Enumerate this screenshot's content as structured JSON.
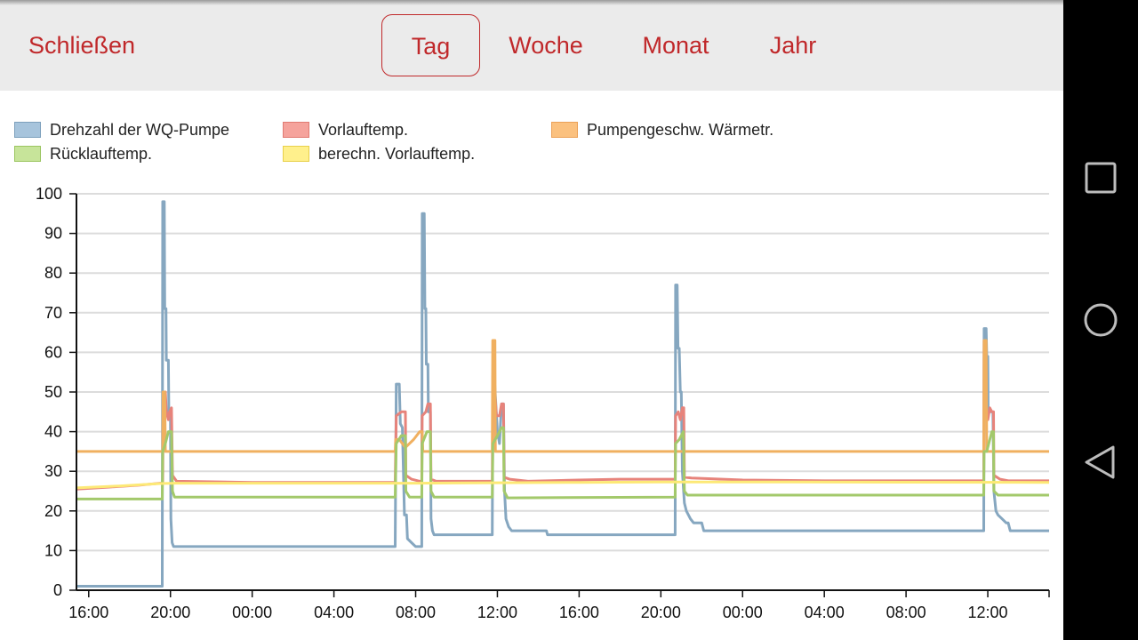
{
  "header": {
    "close_label": "Schließen",
    "tabs": [
      {
        "label": "Tag",
        "active": true
      },
      {
        "label": "Woche",
        "active": false
      },
      {
        "label": "Monat",
        "active": false
      },
      {
        "label": "Jahr",
        "active": false
      }
    ]
  },
  "navbar": {
    "buttons": [
      "recent-apps-icon",
      "home-icon",
      "back-icon"
    ]
  },
  "colors": {
    "accent": "#c0282a",
    "drehzahl": "#86a7c0",
    "vorlauf": "#e7837b",
    "ruecklauf": "#a3c96b",
    "berechn": "#fde976",
    "pumpen": "#f0b060"
  },
  "chart_data": {
    "type": "line",
    "ylim": [
      0,
      100
    ],
    "yticks": [
      0,
      10,
      20,
      30,
      40,
      50,
      60,
      70,
      80,
      90,
      100
    ],
    "xlim": [
      15.4,
      63.0
    ],
    "xunit": "hours since first midnight shown (00:00 = 24)",
    "xticks": [
      {
        "x": 16,
        "label": "16:00"
      },
      {
        "x": 20,
        "label": "20:00"
      },
      {
        "x": 24,
        "label": "00:00"
      },
      {
        "x": 28,
        "label": "04:00"
      },
      {
        "x": 32,
        "label": "08:00"
      },
      {
        "x": 36,
        "label": "12:00"
      },
      {
        "x": 40,
        "label": "16:00"
      },
      {
        "x": 44,
        "label": "20:00"
      },
      {
        "x": 48,
        "label": "00:00"
      },
      {
        "x": 52,
        "label": "04:00"
      },
      {
        "x": 56,
        "label": "08:00"
      },
      {
        "x": 60,
        "label": "12:00"
      }
    ],
    "grid": true,
    "legend_position": "top",
    "series": [
      {
        "name": "Drehzahl der WQ-Pumpe",
        "color": "#86a7c0",
        "points": [
          [
            15.4,
            1
          ],
          [
            19.6,
            1
          ],
          [
            19.62,
            98
          ],
          [
            19.7,
            98
          ],
          [
            19.72,
            71
          ],
          [
            19.78,
            71
          ],
          [
            19.8,
            58
          ],
          [
            19.9,
            58
          ],
          [
            19.92,
            45
          ],
          [
            20.0,
            45
          ],
          [
            20.02,
            18
          ],
          [
            20.08,
            12
          ],
          [
            20.15,
            11
          ],
          [
            31.0,
            11
          ],
          [
            31.05,
            52
          ],
          [
            31.2,
            52
          ],
          [
            31.25,
            42
          ],
          [
            31.35,
            41
          ],
          [
            31.45,
            19
          ],
          [
            31.55,
            19
          ],
          [
            31.6,
            13
          ],
          [
            31.8,
            12
          ],
          [
            32.0,
            11
          ],
          [
            32.3,
            11
          ],
          [
            32.32,
            95
          ],
          [
            32.42,
            95
          ],
          [
            32.45,
            71
          ],
          [
            32.5,
            71
          ],
          [
            32.52,
            57
          ],
          [
            32.6,
            57
          ],
          [
            32.62,
            45
          ],
          [
            32.72,
            45
          ],
          [
            32.75,
            18
          ],
          [
            32.82,
            15
          ],
          [
            32.9,
            14
          ],
          [
            35.75,
            14
          ],
          [
            35.78,
            54
          ],
          [
            35.85,
            54
          ],
          [
            35.9,
            49
          ],
          [
            36.0,
            40
          ],
          [
            36.1,
            37
          ],
          [
            36.2,
            47
          ],
          [
            36.3,
            47
          ],
          [
            36.35,
            25
          ],
          [
            36.42,
            18
          ],
          [
            36.55,
            16
          ],
          [
            36.7,
            15
          ],
          [
            38.4,
            15
          ],
          [
            38.45,
            14
          ],
          [
            44.7,
            14
          ],
          [
            44.72,
            77
          ],
          [
            44.8,
            77
          ],
          [
            44.84,
            61
          ],
          [
            44.9,
            61
          ],
          [
            44.95,
            50
          ],
          [
            45.0,
            50
          ],
          [
            45.05,
            30
          ],
          [
            45.15,
            22
          ],
          [
            45.25,
            20
          ],
          [
            45.45,
            18
          ],
          [
            45.6,
            17
          ],
          [
            46.0,
            17
          ],
          [
            46.1,
            15
          ],
          [
            59.8,
            15
          ],
          [
            59.82,
            66
          ],
          [
            59.92,
            66
          ],
          [
            59.95,
            59
          ],
          [
            60.0,
            59
          ],
          [
            60.02,
            45
          ],
          [
            60.25,
            45
          ],
          [
            60.3,
            25
          ],
          [
            60.4,
            20
          ],
          [
            60.5,
            19
          ],
          [
            60.7,
            18
          ],
          [
            60.9,
            17
          ],
          [
            61.0,
            17
          ],
          [
            61.1,
            15
          ],
          [
            63.0,
            15
          ]
        ]
      },
      {
        "name": "Vorlauftemp.",
        "color": "#e7837b",
        "points": [
          [
            15.4,
            25.5
          ],
          [
            17.0,
            26
          ],
          [
            18.5,
            26.5
          ],
          [
            19.5,
            27
          ],
          [
            19.62,
            27
          ],
          [
            19.65,
            50
          ],
          [
            19.75,
            50
          ],
          [
            19.8,
            45
          ],
          [
            19.9,
            43
          ],
          [
            19.95,
            45
          ],
          [
            20.05,
            46
          ],
          [
            20.1,
            29
          ],
          [
            20.3,
            27.5
          ],
          [
            24.0,
            27.2
          ],
          [
            31.0,
            27.2
          ],
          [
            31.05,
            44
          ],
          [
            31.3,
            45
          ],
          [
            31.5,
            45
          ],
          [
            31.52,
            29
          ],
          [
            31.8,
            28
          ],
          [
            32.2,
            27.5
          ],
          [
            32.3,
            27.5
          ],
          [
            32.32,
            44
          ],
          [
            32.5,
            45
          ],
          [
            32.6,
            47
          ],
          [
            32.72,
            47
          ],
          [
            32.75,
            28
          ],
          [
            33.0,
            27.5
          ],
          [
            35.75,
            27.5
          ],
          [
            35.78,
            54
          ],
          [
            35.85,
            52
          ],
          [
            35.95,
            44
          ],
          [
            36.1,
            44
          ],
          [
            36.2,
            47
          ],
          [
            36.3,
            47
          ],
          [
            36.33,
            28.5
          ],
          [
            36.6,
            28
          ],
          [
            37.5,
            27.5
          ],
          [
            40.0,
            27.8
          ],
          [
            42.0,
            28
          ],
          [
            44.7,
            28
          ],
          [
            44.72,
            44
          ],
          [
            44.85,
            45
          ],
          [
            44.95,
            43
          ],
          [
            45.05,
            46
          ],
          [
            45.12,
            46
          ],
          [
            45.15,
            28.5
          ],
          [
            45.5,
            28.3
          ],
          [
            48.0,
            27.8
          ],
          [
            52.0,
            27.6
          ],
          [
            59.8,
            27.6
          ],
          [
            59.82,
            63
          ],
          [
            59.9,
            63
          ],
          [
            59.93,
            45
          ],
          [
            60.0,
            43
          ],
          [
            60.1,
            46
          ],
          [
            60.2,
            45
          ],
          [
            60.28,
            45
          ],
          [
            60.3,
            29
          ],
          [
            60.6,
            28
          ],
          [
            61.0,
            27.6
          ],
          [
            63.0,
            27.6
          ]
        ]
      },
      {
        "name": "Pumpengeschw. Wärmetr.",
        "color": "#f0b060",
        "points": [
          [
            15.4,
            35
          ],
          [
            19.62,
            35
          ],
          [
            19.64,
            50
          ],
          [
            19.72,
            50
          ],
          [
            19.75,
            35
          ],
          [
            31.0,
            35
          ],
          [
            31.02,
            38
          ],
          [
            31.2,
            38
          ],
          [
            31.5,
            36
          ],
          [
            31.9,
            38
          ],
          [
            32.2,
            40
          ],
          [
            32.32,
            40
          ],
          [
            32.35,
            35
          ],
          [
            35.75,
            35
          ],
          [
            35.77,
            63
          ],
          [
            35.88,
            63
          ],
          [
            35.9,
            35
          ],
          [
            59.8,
            35
          ],
          [
            59.82,
            63
          ],
          [
            59.92,
            63
          ],
          [
            59.95,
            35
          ],
          [
            63.0,
            35
          ]
        ]
      },
      {
        "name": "Rücklauftemp.",
        "color": "#a3c96b",
        "points": [
          [
            15.4,
            23
          ],
          [
            19.6,
            23
          ],
          [
            19.62,
            35
          ],
          [
            19.75,
            37
          ],
          [
            19.9,
            40
          ],
          [
            20.05,
            40
          ],
          [
            20.1,
            25
          ],
          [
            20.2,
            23.5
          ],
          [
            31.0,
            23.5
          ],
          [
            31.05,
            37
          ],
          [
            31.3,
            39
          ],
          [
            31.5,
            39
          ],
          [
            31.52,
            25
          ],
          [
            31.7,
            23.5
          ],
          [
            32.3,
            23.5
          ],
          [
            32.32,
            37
          ],
          [
            32.55,
            40
          ],
          [
            32.72,
            40
          ],
          [
            32.75,
            25
          ],
          [
            32.9,
            23.5
          ],
          [
            35.75,
            23.5
          ],
          [
            35.78,
            37
          ],
          [
            36.0,
            39
          ],
          [
            36.2,
            41
          ],
          [
            36.3,
            41
          ],
          [
            36.33,
            25
          ],
          [
            36.5,
            23.3
          ],
          [
            44.7,
            23.5
          ],
          [
            44.72,
            37
          ],
          [
            44.9,
            38
          ],
          [
            45.1,
            40
          ],
          [
            45.15,
            25
          ],
          [
            45.3,
            24
          ],
          [
            59.8,
            24
          ],
          [
            59.82,
            35
          ],
          [
            59.95,
            35
          ],
          [
            60.1,
            38
          ],
          [
            60.2,
            40
          ],
          [
            60.28,
            40
          ],
          [
            60.3,
            25
          ],
          [
            60.5,
            24
          ],
          [
            63.0,
            24
          ]
        ]
      },
      {
        "name": "berechn. Vorlauftemp.",
        "color": "#fde976",
        "points": [
          [
            15.4,
            25.8
          ],
          [
            17.5,
            26.3
          ],
          [
            19.5,
            26.9
          ],
          [
            20.2,
            27
          ],
          [
            31.0,
            27
          ],
          [
            32.0,
            27
          ],
          [
            40.0,
            27.2
          ],
          [
            44.0,
            27.3
          ],
          [
            48.0,
            27.3
          ],
          [
            63.0,
            27.2
          ]
        ]
      }
    ]
  }
}
